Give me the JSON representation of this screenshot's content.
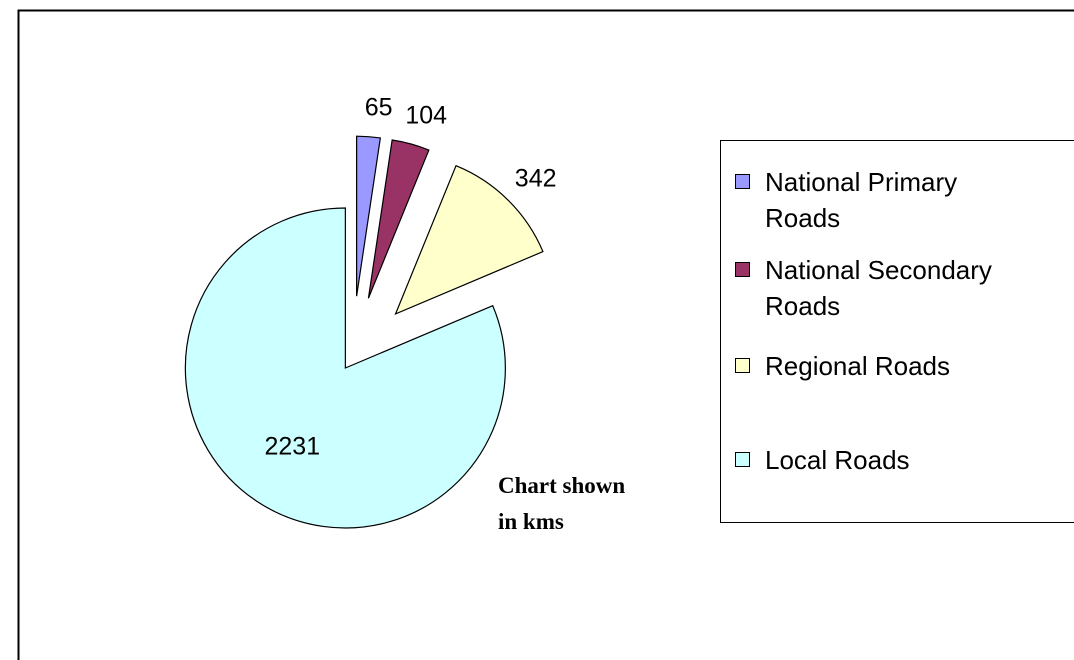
{
  "chart_data": {
    "type": "pie",
    "categories": [
      "National Primary Roads",
      "National Secondary Roads",
      "Regional Roads",
      "Local Roads"
    ],
    "values": [
      65,
      104,
      342,
      2231
    ],
    "colors": [
      "#9999ff",
      "#993366",
      "#ffffcc",
      "#ccffff"
    ],
    "annotation": "Chart shown in kms",
    "legend": "right"
  }
}
